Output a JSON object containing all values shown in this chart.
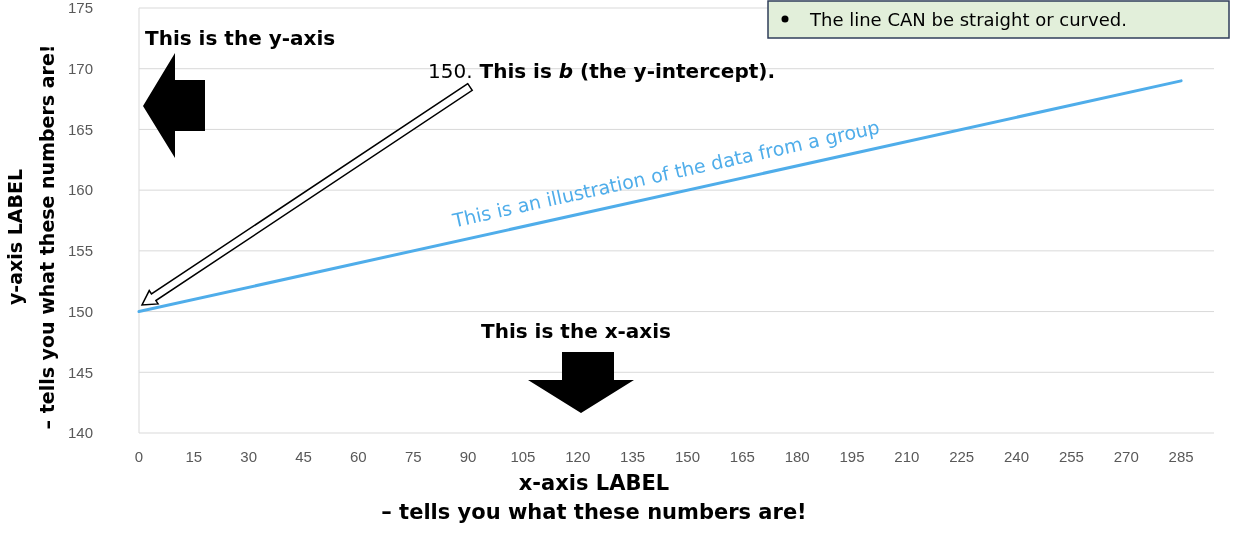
{
  "chart_data": {
    "type": "line",
    "x": [
      0,
      285
    ],
    "series": [
      {
        "name": "This is an illustration of the data from a group",
        "color": "#4fadea",
        "values": [
          150,
          169
        ]
      }
    ],
    "xlim": [
      0,
      294
    ],
    "xticks": [
      0,
      15,
      30,
      45,
      60,
      75,
      90,
      105,
      120,
      135,
      150,
      165,
      180,
      195,
      210,
      225,
      240,
      255,
      270,
      285
    ],
    "ylim": [
      140,
      175
    ],
    "yticks": [
      140,
      145,
      150,
      155,
      160,
      165,
      170,
      175
    ],
    "grid": "y",
    "xlabel": "x-axis LABEL\n– tells you what these numbers are!",
    "ylabel": "y-axis LABEL\n– tells you what these numbers are!",
    "annotations": [
      "This is the y-axis",
      "150. This is b (the y-intercept).",
      "This is the x-axis",
      "The line CAN be straight or curved."
    ]
  }
}
